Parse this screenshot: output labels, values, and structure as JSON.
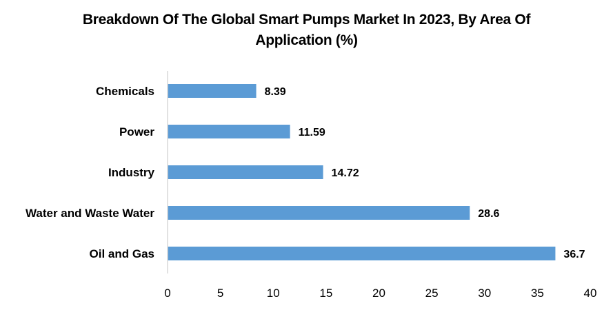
{
  "chart_data": {
    "type": "bar",
    "orientation": "horizontal",
    "title_lines": [
      "Breakdown Of The Global Smart Pumps Market In 2023, By Area Of",
      "Application (%)"
    ],
    "title": "Breakdown Of The Global Smart Pumps Market In 2023, By Area Of Application (%)",
    "categories": [
      "Chemicals",
      "Power",
      "Industry",
      "Water and Waste Water",
      "Oil and Gas"
    ],
    "values": [
      8.39,
      11.59,
      14.72,
      28.6,
      36.7
    ],
    "value_labels": [
      "8.39",
      "11.59",
      "14.72",
      "28.6",
      "36.7"
    ],
    "xlabel": "",
    "ylabel": "",
    "xlim": [
      0,
      40
    ],
    "xticks": [
      0,
      5,
      10,
      15,
      20,
      25,
      30,
      35,
      40
    ],
    "xtick_labels": [
      "0",
      "5",
      "10",
      "15",
      "20",
      "25",
      "30",
      "35",
      "40"
    ],
    "grid": false,
    "legend": "none",
    "bar_color": "#5B9BD5",
    "axis_color": "#D9D9D9"
  }
}
